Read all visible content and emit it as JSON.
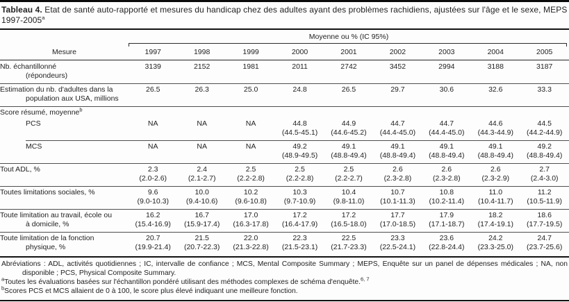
{
  "title": {
    "label": "Tableau 4.",
    "text": " Etat de santé auto-rapporté et mesures du handicap chez des adultes ayant des problèmes rachidiens, ajustées sur l'âge et le sexe, MEPS 1997-2005",
    "sup": "a"
  },
  "table": {
    "spanner": "Moyenne ou % (IC 95%)",
    "measure_header": "Mesure",
    "years": [
      "1997",
      "1998",
      "1999",
      "2000",
      "2001",
      "2002",
      "2003",
      "2004",
      "2005"
    ],
    "rows": [
      {
        "name": "nb-echantillonne",
        "label_lines": [
          "Nb. échantillonné",
          "(répondeurs)"
        ],
        "rule": "none",
        "cells": [
          {
            "v": "3139"
          },
          {
            "v": "2152"
          },
          {
            "v": "1981"
          },
          {
            "v": "2011"
          },
          {
            "v": "2742"
          },
          {
            "v": "3452"
          },
          {
            "v": "2994"
          },
          {
            "v": "3188"
          },
          {
            "v": "3187"
          }
        ]
      },
      {
        "name": "estimation-population",
        "label_lines": [
          "Estimation du nb. d'adultes dans la",
          "population aux USA, millions"
        ],
        "rule": "full",
        "cells": [
          {
            "v": "26.5"
          },
          {
            "v": "26.3"
          },
          {
            "v": "25.0"
          },
          {
            "v": "24.8"
          },
          {
            "v": "26.5"
          },
          {
            "v": "29.7"
          },
          {
            "v": "30.6"
          },
          {
            "v": "32.6"
          },
          {
            "v": "33.3"
          }
        ]
      },
      {
        "name": "score-resume-section",
        "section": true,
        "label_lines": [
          "Score résumé, moyenne"
        ],
        "sup": "b",
        "rule": "full",
        "cells": []
      },
      {
        "name": "pcs",
        "sub": true,
        "label_lines": [
          "PCS"
        ],
        "rule": "none",
        "cells": [
          {
            "v": "NA"
          },
          {
            "v": "NA"
          },
          {
            "v": "NA"
          },
          {
            "v": "44.8",
            "ci": "(44.5-45.1)"
          },
          {
            "v": "44.9",
            "ci": "(44.6-45.2)"
          },
          {
            "v": "44.7",
            "ci": "(44.4-45.0)"
          },
          {
            "v": "44.7",
            "ci": "(44.4-45.0)"
          },
          {
            "v": "44.6",
            "ci": "(44.3-44.9)"
          },
          {
            "v": "44.5",
            "ci": "(44.2-44.9)"
          }
        ]
      },
      {
        "name": "mcs",
        "sub": true,
        "label_lines": [
          "MCS"
        ],
        "rule": "indent",
        "cells": [
          {
            "v": "NA"
          },
          {
            "v": "NA"
          },
          {
            "v": "NA"
          },
          {
            "v": "49.2",
            "ci": "(48.9-49.5)"
          },
          {
            "v": "49.1",
            "ci": "(48.8-49.4)"
          },
          {
            "v": "49.1",
            "ci": "(48.8-49.4)"
          },
          {
            "v": "49.1",
            "ci": "(48.8-49.4)"
          },
          {
            "v": "49.1",
            "ci": "(48.8-49.4)"
          },
          {
            "v": "49.2",
            "ci": "(48.8-49.4)"
          }
        ]
      },
      {
        "name": "tout-adl",
        "label_lines": [
          "Tout ADL, %"
        ],
        "rule": "full",
        "cells": [
          {
            "v": "2.3",
            "ci": "(2.0-2.6)"
          },
          {
            "v": "2.4",
            "ci": "(2.1-2.7)"
          },
          {
            "v": "2.5",
            "ci": "(2.2-2.8)"
          },
          {
            "v": "2.5",
            "ci": "(2.2-2.8)"
          },
          {
            "v": "2.5",
            "ci": "(2.2-2.7)"
          },
          {
            "v": "2.6",
            "ci": "(2.3-2.8)"
          },
          {
            "v": "2.6",
            "ci": "(2.3-2.8)"
          },
          {
            "v": "2.6",
            "ci": "(2.3-2.9)"
          },
          {
            "v": "2.7",
            "ci": "(2.4-3.0)"
          }
        ]
      },
      {
        "name": "limitations-sociales",
        "label_lines": [
          "Toutes limitations sociales, %"
        ],
        "rule": "full",
        "cells": [
          {
            "v": "9.6",
            "ci": "(9.0-10.3)"
          },
          {
            "v": "10.0",
            "ci": "(9.4-10.6)"
          },
          {
            "v": "10.2",
            "ci": "(9.6-10.8)"
          },
          {
            "v": "10.3",
            "ci": "(9.7-10.9)"
          },
          {
            "v": "10.4",
            "ci": "(9.8-11.0)"
          },
          {
            "v": "10.7",
            "ci": "(10.1-11.3)"
          },
          {
            "v": "10.8",
            "ci": "(10.2-11.4)"
          },
          {
            "v": "11.0",
            "ci": "(10.4-11.7)"
          },
          {
            "v": "11.2",
            "ci": "(10.5-11.9)"
          }
        ]
      },
      {
        "name": "limitation-travail",
        "label_lines": [
          "Toute limitation au travail, école ou",
          "à domicile, %"
        ],
        "rule": "full",
        "cells": [
          {
            "v": "16.2",
            "ci": "(15.4-16.9)"
          },
          {
            "v": "16.7",
            "ci": "(15.9-17.4)"
          },
          {
            "v": "17.0",
            "ci": "(16.3-17.8)"
          },
          {
            "v": "17.2",
            "ci": "(16.4-17.9)"
          },
          {
            "v": "17.2",
            "ci": "(16.5-18.0)"
          },
          {
            "v": "17.7",
            "ci": "(17.0-18.5)"
          },
          {
            "v": "17.9",
            "ci": "(17.1-18.7)"
          },
          {
            "v": "18.2",
            "ci": "(17.4-19.1)"
          },
          {
            "v": "18.6",
            "ci": "(17.7-19.5)"
          }
        ]
      },
      {
        "name": "limitation-physique",
        "label_lines": [
          "Toute limitation de la fonction",
          "physique, %"
        ],
        "rule": "full",
        "cells": [
          {
            "v": "20.7",
            "ci": "(19.9-21.4)"
          },
          {
            "v": "21.5",
            "ci": "(20.7-22.3)"
          },
          {
            "v": "22.0",
            "ci": "(21.3-22.8)"
          },
          {
            "v": "22.3",
            "ci": "(21.5-23.1)"
          },
          {
            "v": "22.5",
            "ci": "(21.7-23.3)"
          },
          {
            "v": "23.3",
            "ci": "(22.5-24.1)"
          },
          {
            "v": "23.6",
            "ci": "(22.8-24.4)"
          },
          {
            "v": "24.2",
            "ci": "(23.3-25.0)"
          },
          {
            "v": "24.7",
            "ci": "(23.7-25.6)"
          }
        ]
      }
    ]
  },
  "footnotes": [
    {
      "sup": "",
      "text": "Abréviations : ADL, activités quotidiennes ; IC, intervalle de confiance ; MCS, Mental Composite Summary ; MEPS, Enquête sur un panel de dépenses médicales ; NA, non disponible ; PCS, Physical Composite Summary.",
      "trail_sup": ""
    },
    {
      "sup": "a",
      "text": "Toutes les évaluations basées sur l'échantillon pondéré utilisant des méthodes complexes de schéma d'enquête.",
      "trail_sup": "6, 7"
    },
    {
      "sup": "b",
      "text": "Scores PCS et MCS allaient de 0 à 100, le score plus élevé indiquant une meilleure fonction.",
      "trail_sup": ""
    }
  ]
}
